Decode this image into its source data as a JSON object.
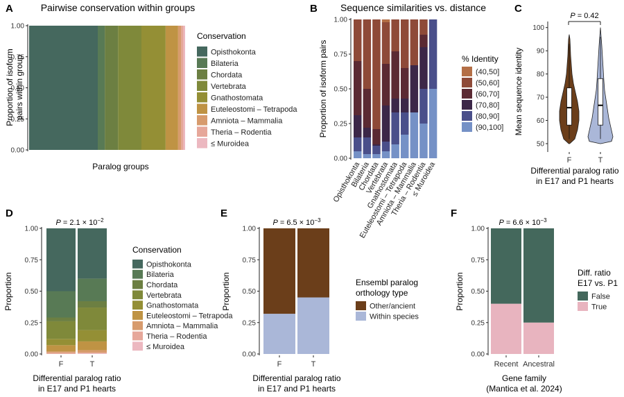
{
  "colors": {
    "opisthokonta": "#45685e",
    "bilateria": "#587a55",
    "chordata": "#6c7f42",
    "vertebrata": "#7f893a",
    "gnathostomata": "#948f35",
    "euteleostomi": "#bf9344",
    "amniota": "#d79b6d",
    "theria": "#e6a79a",
    "muroidea": "#ecb8c0",
    "id_40_50": "#b46f46",
    "id_50_60": "#8e4a38",
    "id_60_70": "#5b2a33",
    "id_70_80": "#3c2748",
    "id_80_90": "#4a4f8a",
    "id_90_100": "#7591c6",
    "f_violin": "#6b3e1a",
    "t_violin": "#aab7d8",
    "other_ancient": "#6b3e1a",
    "within_species": "#aab7d8",
    "false": "#44685c",
    "true": "#e8b4bf"
  },
  "conservation_legend": {
    "title": "Conservation",
    "items": [
      {
        "label": "Opisthokonta",
        "color": "#45685e"
      },
      {
        "label": "Bilateria",
        "color": "#587a55"
      },
      {
        "label": "Chordata",
        "color": "#6c7f42"
      },
      {
        "label": "Vertebrata",
        "color": "#7f893a"
      },
      {
        "label": "Gnathostomata",
        "color": "#948f35"
      },
      {
        "label": "Euteleostomi – Tetrapoda",
        "color": "#bf9344"
      },
      {
        "label": "Amniota – Mammalia",
        "color": "#d79b6d"
      },
      {
        "label": "Theria – Rodentia",
        "color": "#e6a79a"
      },
      {
        "label": "≤ Muroidea",
        "color": "#ecb8c0"
      }
    ]
  },
  "chart_data": [
    {
      "panel": "A",
      "type": "area",
      "title": "Pairwise conservation within groups",
      "xlabel": "Paralog groups",
      "ylabel": "Proportion of isoform pairs within group",
      "ylim": [
        0,
        1
      ],
      "yticks": [
        "0.00",
        "0.25",
        "0.50",
        "0.75",
        "1.00"
      ],
      "legend_position": "right",
      "segments": [
        {
          "name": "Opisthokonta",
          "start": 0.0,
          "end": 0.44
        },
        {
          "name": "Bilateria",
          "start": 0.44,
          "end": 0.485
        },
        {
          "name": "Chordata",
          "start": 0.485,
          "end": 0.57
        },
        {
          "name": "Vertebrata",
          "start": 0.57,
          "end": 0.72
        },
        {
          "name": "Gnathostomata",
          "start": 0.72,
          "end": 0.875
        },
        {
          "name": "Euteleostomi – Tetrapoda",
          "start": 0.875,
          "end": 0.955
        },
        {
          "name": "Amniota – Mammalia",
          "start": 0.955,
          "end": 0.975
        },
        {
          "name": "Theria – Rodentia",
          "start": 0.975,
          "end": 0.99
        },
        {
          "name": "≤ Muroidea",
          "start": 0.99,
          "end": 1.0
        }
      ]
    },
    {
      "panel": "B",
      "type": "bar",
      "title": "Sequence similarities vs. distance",
      "ylabel": "Proportion of isoform pairs",
      "ylim": [
        0,
        1
      ],
      "yticks": [
        "0.00",
        "0.25",
        "0.50",
        "0.75",
        "1.00"
      ],
      "legend_title": "% Identity",
      "legend_position": "right",
      "categories": [
        "Opisthokonta",
        "Bilateria",
        "Chordata",
        "Vertebrata",
        "Gnathostomata",
        "Euteleostomi – Tetrapoda",
        "Amniota – Mammalia",
        "Theria – Rodentia",
        "≤ Muroidea"
      ],
      "series": [
        {
          "name": "(90,100]",
          "values": [
            0.05,
            0.03,
            0.03,
            0.05,
            0.1,
            0.17,
            0.33,
            0.25,
            0.5
          ]
        },
        {
          "name": "(80,90]",
          "values": [
            0.1,
            0.12,
            0.06,
            0.07,
            0.23,
            0.16,
            0.0,
            0.25,
            0.5
          ]
        },
        {
          "name": "(70,80]",
          "values": [
            0.16,
            0.07,
            0.01,
            0.26,
            0.1,
            0.1,
            0.34,
            0.3,
            0.0
          ]
        },
        {
          "name": "(60,70]",
          "values": [
            0.39,
            0.28,
            0.11,
            0.3,
            0.34,
            0.22,
            0.0,
            0.09,
            0.0
          ]
        },
        {
          "name": "(50,60]",
          "values": [
            0.3,
            0.5,
            0.79,
            0.3,
            0.23,
            0.35,
            0.33,
            0.11,
            0.0
          ]
        },
        {
          "name": "(40,50]",
          "values": [
            0.0,
            0.0,
            0.0,
            0.02,
            0.0,
            0.0,
            0.0,
            0.0,
            0.0
          ]
        }
      ]
    },
    {
      "panel": "C",
      "type": "violin",
      "ylabel": "Mean sequence identity",
      "xlabel_line1": "Differential paralog ratio",
      "xlabel_line2": "in E17 and P1 hearts",
      "ylim": [
        47,
        102
      ],
      "yticks": [
        50,
        60,
        70,
        80,
        90,
        100
      ],
      "annotation": "P = 0.42",
      "categories": [
        "F",
        "T"
      ],
      "groups": [
        {
          "name": "F",
          "min": 50,
          "q1": 58,
          "median": 65.5,
          "q3": 74,
          "max": 97
        },
        {
          "name": "T",
          "min": 50,
          "q1": 58,
          "median": 66.5,
          "q3": 78,
          "max": 100
        }
      ]
    },
    {
      "panel": "D",
      "type": "bar",
      "ylabel": "Proportion",
      "xlabel_line1": "Differential paralog ratio",
      "xlabel_line2": "in E17 and P1 hearts",
      "ylim": [
        0,
        1
      ],
      "yticks": [
        "0.00",
        "0.25",
        "0.50",
        "0.75",
        "1.00"
      ],
      "annotation": "P = 2.1 × 10−2",
      "categories": [
        "F",
        "T"
      ],
      "series": [
        {
          "name": "Opisthokonta",
          "values": [
            0.5,
            0.4
          ]
        },
        {
          "name": "Bilateria",
          "values": [
            0.21,
            0.18
          ]
        },
        {
          "name": "Chordata",
          "values": [
            0.03,
            0.05
          ]
        },
        {
          "name": "Vertebrata",
          "values": [
            0.14,
            0.18
          ]
        },
        {
          "name": "Gnathostomata",
          "values": [
            0.05,
            0.09
          ]
        },
        {
          "name": "Euteleostomi – Tetrapoda",
          "values": [
            0.05,
            0.07
          ]
        },
        {
          "name": "Amniota – Mammalia",
          "values": [
            0.01,
            0.02
          ]
        },
        {
          "name": "Theria – Rodentia",
          "values": [
            0.01,
            0.005
          ]
        },
        {
          "name": "≤ Muroidea",
          "values": [
            0.0,
            0.005
          ]
        }
      ]
    },
    {
      "panel": "E",
      "type": "bar",
      "ylabel": "Proportion",
      "xlabel_line1": "Differential paralog ratio",
      "xlabel_line2": "in E17 and P1 hearts",
      "ylim": [
        0,
        1
      ],
      "yticks": [
        "0.00",
        "0.25",
        "0.50",
        "0.75",
        "1.00"
      ],
      "annotation": "P = 6.5 × 10−3",
      "legend_title_line1": "Ensembl paralog",
      "legend_title_line2": "orthology type",
      "categories": [
        "F",
        "T"
      ],
      "series": [
        {
          "name": "Other/ancient",
          "values": [
            0.68,
            0.55
          ]
        },
        {
          "name": "Within species",
          "values": [
            0.32,
            0.45
          ]
        }
      ]
    },
    {
      "panel": "F",
      "type": "bar",
      "ylabel": "Proportion",
      "xlabel_line1": "Gene family",
      "xlabel_line2": "(Mantica et al. 2024)",
      "ylim": [
        0,
        1
      ],
      "yticks": [
        "0.00",
        "0.25",
        "0.50",
        "0.75",
        "1.00"
      ],
      "annotation": "P = 6.6 × 10−3",
      "legend_title_line1": "Diff. ratio",
      "legend_title_line2": "E17 vs. P1",
      "categories": [
        "Recent",
        "Ancestral"
      ],
      "series": [
        {
          "name": "False",
          "values": [
            0.6,
            0.75
          ]
        },
        {
          "name": "True",
          "values": [
            0.4,
            0.25
          ]
        }
      ]
    }
  ]
}
